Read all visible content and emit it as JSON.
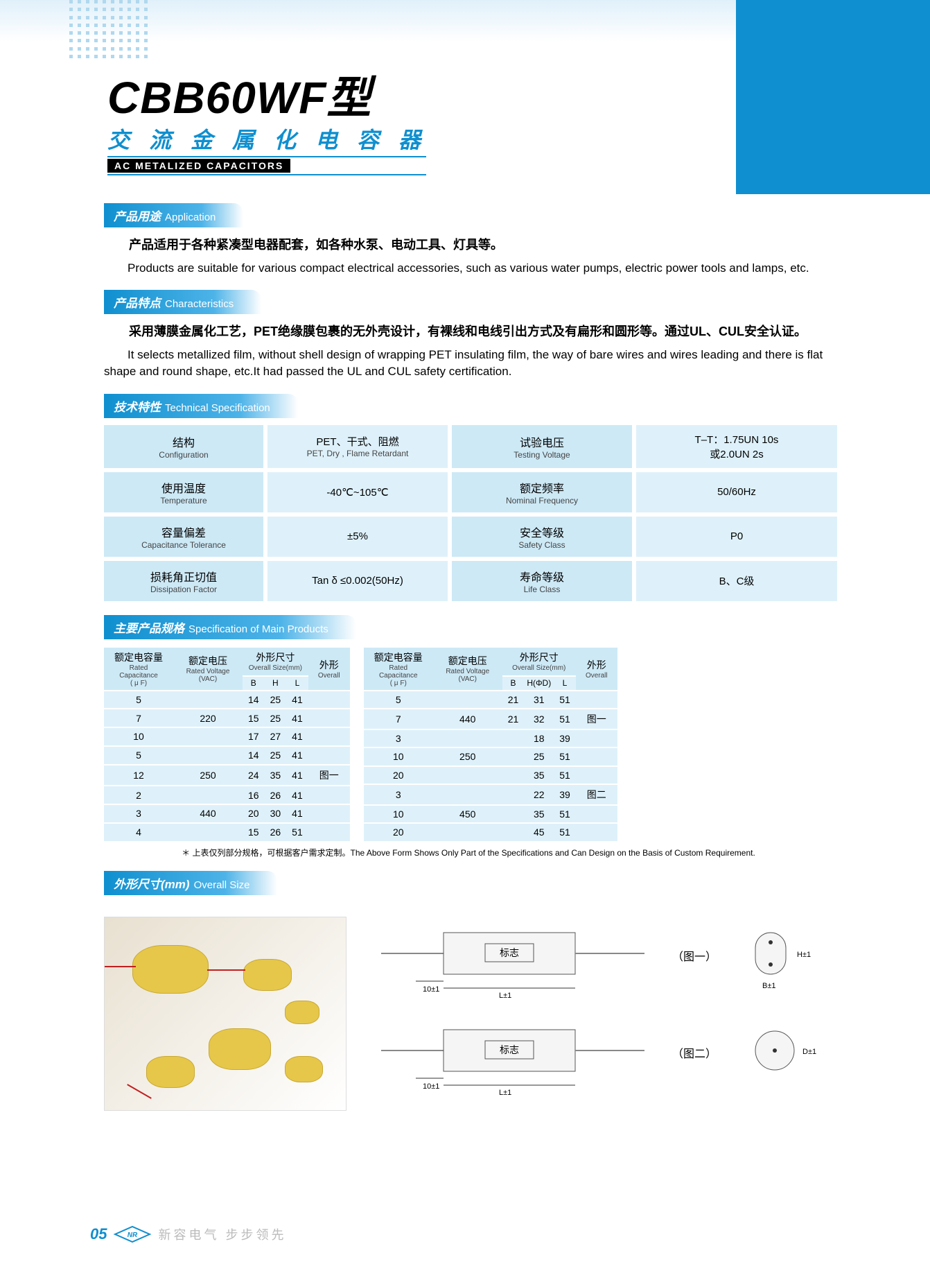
{
  "header": {
    "model": "CBB60WF型",
    "subtitle_cn": "交流金属化电容器",
    "subtitle_en": "AC METALIZED CAPACITORS"
  },
  "application": {
    "head_cn": "产品用途",
    "head_en": "Application",
    "body_cn": "产品适用于各种紧凑型电器配套，如各种水泵、电动工具、灯具等。",
    "body_en": "Products are suitable for various compact electrical accessories, such as various water pumps, electric power tools and lamps, etc."
  },
  "characteristics": {
    "head_cn": "产品特点",
    "head_en": "Characteristics",
    "body_cn": "采用薄膜金属化工艺，PET绝缘膜包裹的无外壳设计，有裸线和电线引出方式及有扁形和圆形等。通过UL、CUL安全认证。",
    "body_en": "It selects metallized film, without shell design of wrapping PET insulating film, the way of bare wires and wires leading and there is flat shape and round shape, etc.It had passed the UL and CUL safety certification."
  },
  "techspec": {
    "head_cn": "技术特性",
    "head_en": "Technical Specification",
    "rows": [
      {
        "lcn": "结构",
        "len": "Configuration",
        "lv": "PET、干式、阻燃",
        "lv2": "PET, Dry , Flame Retardant",
        "rcn": "试验电压",
        "ren": "Testing Voltage",
        "rv": "T–T：1.75UN 10s",
        "rv2": "或2.0UN 2s"
      },
      {
        "lcn": "使用温度",
        "len": "Temperature",
        "lv": "-40℃~105℃",
        "lv2": "",
        "rcn": "额定频率",
        "ren": "Nominal Frequency",
        "rv": "50/60Hz",
        "rv2": ""
      },
      {
        "lcn": "容量偏差",
        "len": "Capacitance Tolerance",
        "lv": "±5%",
        "lv2": "",
        "rcn": "安全等级",
        "ren": "Safety Class",
        "rv": "P0",
        "rv2": ""
      },
      {
        "lcn": "损耗角正切值",
        "len": "Dissipation Factor",
        "lv": "Tan δ ≤0.002(50Hz)",
        "lv2": "",
        "rcn": "寿命等级",
        "ren": "Life Class",
        "rv": "B、C级",
        "rv2": ""
      }
    ]
  },
  "mainspec": {
    "head_cn": "主要产品规格",
    "head_en": "Specification of Main Products",
    "col_cap_cn": "额定电容量",
    "col_cap_en": "Rated Capacitance",
    "col_cap_unit": "( μ F)",
    "col_volt_cn": "额定电压",
    "col_volt_en": "Rated Voltage",
    "col_volt_unit": "(VAC)",
    "col_size_cn": "外形尺寸",
    "col_size_en": "Overall Size(mm)",
    "col_overall_cn": "外形",
    "col_overall_en": "Overall",
    "sub_b": "B",
    "sub_h": "H",
    "sub_l": "L",
    "sub_hd": "H(ΦD)",
    "left_rows": [
      {
        "c": "5",
        "v": "",
        "b": "14",
        "h": "25",
        "l": "41",
        "o": ""
      },
      {
        "c": "7",
        "v": "220",
        "b": "15",
        "h": "25",
        "l": "41",
        "o": ""
      },
      {
        "c": "10",
        "v": "",
        "b": "17",
        "h": "27",
        "l": "41",
        "o": ""
      },
      {
        "c": "5",
        "v": "",
        "b": "14",
        "h": "25",
        "l": "41",
        "o": ""
      },
      {
        "c": "12",
        "v": "250",
        "b": "24",
        "h": "35",
        "l": "41",
        "o": "图一"
      },
      {
        "c": "2",
        "v": "",
        "b": "16",
        "h": "26",
        "l": "41",
        "o": ""
      },
      {
        "c": "3",
        "v": "440",
        "b": "20",
        "h": "30",
        "l": "41",
        "o": ""
      },
      {
        "c": "4",
        "v": "",
        "b": "15",
        "h": "26",
        "l": "51",
        "o": ""
      }
    ],
    "right_rows": [
      {
        "c": "5",
        "v": "",
        "b": "21",
        "h": "31",
        "l": "51",
        "o": ""
      },
      {
        "c": "7",
        "v": "440",
        "b": "21",
        "h": "32",
        "l": "51",
        "o": "图一"
      },
      {
        "c": "3",
        "v": "",
        "b": "",
        "h": "18",
        "l": "39",
        "o": ""
      },
      {
        "c": "10",
        "v": "250",
        "b": "",
        "h": "25",
        "l": "51",
        "o": ""
      },
      {
        "c": "20",
        "v": "",
        "b": "",
        "h": "35",
        "l": "51",
        "o": ""
      },
      {
        "c": "3",
        "v": "",
        "b": "",
        "h": "22",
        "l": "39",
        "o": "图二"
      },
      {
        "c": "10",
        "v": "450",
        "b": "",
        "h": "35",
        "l": "51",
        "o": ""
      },
      {
        "c": "20",
        "v": "",
        "b": "",
        "h": "45",
        "l": "51",
        "o": ""
      }
    ],
    "note": "＊ 上表仅列部分规格，可根据客户需求定制。The Above  Form Shows Only Part of the Specifications and Can Design on the Basis of Custom Requirement."
  },
  "overall_size": {
    "head_cn": "外形尺寸(mm)",
    "head_en": "Overall Size",
    "d1_label": "标志",
    "d1_caption": "（图一）",
    "d2_label": "标志",
    "d2_caption": "（图二）",
    "dim_l": "L±1",
    "dim_10": "10±1",
    "dim_b": "B±1",
    "dim_h": "H±1",
    "dim_d": "D±1"
  },
  "footer": {
    "page": "05",
    "slogan": "新容电气  步步领先"
  },
  "colors": {
    "primary": "#0f8fcf",
    "head_bg": "#cde9f6",
    "cell_bg": "#def1fa",
    "capacitor": "#e6c74a",
    "wire": "#c02020"
  }
}
